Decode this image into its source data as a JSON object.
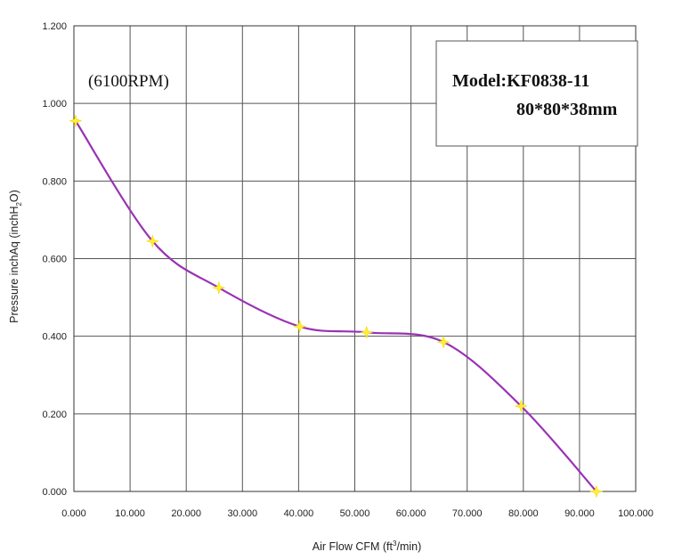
{
  "chart_data": {
    "type": "line",
    "xlabel": "Air Flow CFM (ft³/min)",
    "ylabel": "Pressure inchAq (inchH₂O)",
    "xlim": [
      0,
      100
    ],
    "ylim": [
      0,
      1.2
    ],
    "x_ticks": [
      "0.000",
      "10.000",
      "20.000",
      "30.000",
      "40.000",
      "50.000",
      "60.000",
      "70.000",
      "80.000",
      "90.000",
      "100.000"
    ],
    "y_ticks": [
      "0.000",
      "0.200",
      "0.400",
      "0.600",
      "0.800",
      "1.000",
      "1.200"
    ],
    "grid": true,
    "annotations": {
      "rpm": "(6100RPM)",
      "model": "Model:KF0838-11",
      "size": "80*80*38mm"
    },
    "series": [
      {
        "x": [
          0.3,
          14.0,
          25.8,
          40.2,
          52.1,
          65.8,
          79.6,
          93.0
        ],
        "y": [
          0.955,
          0.645,
          0.525,
          0.425,
          0.41,
          0.385,
          0.22,
          0.0
        ]
      }
    ],
    "colors": {
      "line": "#9932b4",
      "marker": "#ffef3a",
      "grid": "#555555"
    }
  }
}
